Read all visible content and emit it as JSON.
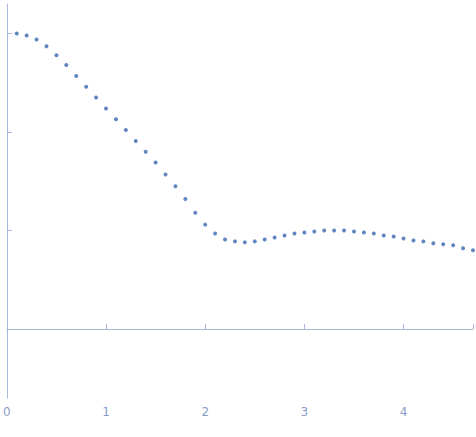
{
  "chart_data": {
    "type": "scatter",
    "x": [
      0.1,
      0.2,
      0.3,
      0.4,
      0.5,
      0.6,
      0.7,
      0.8,
      0.9,
      1.0,
      1.1,
      1.2,
      1.3,
      1.4,
      1.5,
      1.6,
      1.7,
      1.8,
      1.9,
      2.0,
      2.1,
      2.2,
      2.3,
      2.4,
      2.5,
      2.6,
      2.7,
      2.8,
      2.9,
      3.0,
      3.1,
      3.2,
      3.3,
      3.4,
      3.5,
      3.6,
      3.7,
      3.8,
      3.9,
      4.0,
      4.1,
      4.2,
      4.3,
      4.4,
      4.5,
      4.6,
      4.7
    ],
    "values": [
      3.0,
      2.98,
      2.94,
      2.87,
      2.78,
      2.68,
      2.57,
      2.46,
      2.35,
      2.24,
      2.13,
      2.02,
      1.91,
      1.8,
      1.69,
      1.57,
      1.45,
      1.32,
      1.18,
      1.06,
      0.97,
      0.91,
      0.89,
      0.88,
      0.89,
      0.91,
      0.93,
      0.95,
      0.97,
      0.98,
      0.99,
      1.0,
      1.0,
      1.0,
      0.99,
      0.98,
      0.97,
      0.95,
      0.94,
      0.92,
      0.9,
      0.89,
      0.87,
      0.86,
      0.85,
      0.82,
      0.8
    ],
    "color": "#3a66b0",
    "xlim": [
      0,
      4.7
    ],
    "xticks": [
      0,
      1,
      2,
      3,
      4
    ],
    "ylim": [
      -0.7,
      3.3
    ],
    "yticks": [
      0,
      1,
      2,
      3
    ],
    "grid": false,
    "tick_labels": "x",
    "marker": "circle"
  }
}
